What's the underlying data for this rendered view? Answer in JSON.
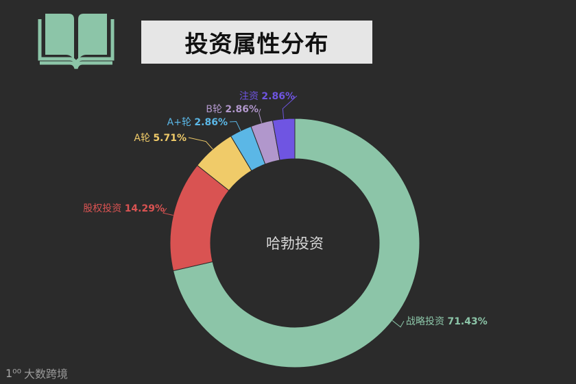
{
  "header": {
    "title": "投资属性分布",
    "icon": "open-book-icon",
    "icon_color": "#8cc5a8"
  },
  "chart_data": {
    "type": "pie",
    "subtype": "donut",
    "center_label": "哈勃投资",
    "slices": [
      {
        "label": "战略投资",
        "value": 71.43,
        "value_text": "71.43%",
        "color": "#8cc5a8"
      },
      {
        "label": "股权投资",
        "value": 14.29,
        "value_text": "14.29%",
        "color": "#d95352"
      },
      {
        "label": "A轮",
        "value": 5.71,
        "value_text": "5.71%",
        "color": "#f0cb69"
      },
      {
        "label": "A+轮",
        "value": 2.86,
        "value_text": "2.86%",
        "color": "#5bb7e6"
      },
      {
        "label": "B轮",
        "value": 2.86,
        "value_text": "2.86%",
        "color": "#b197cc"
      },
      {
        "label": "注资",
        "value": 2.86,
        "value_text": "2.86%",
        "color": "#6f55e2"
      }
    ]
  },
  "watermark": {
    "logo": "1⁰⁰",
    "text": "大数跨境"
  },
  "colors": {
    "background": "#2b2b2b",
    "title_box": "#e6e6e6"
  }
}
